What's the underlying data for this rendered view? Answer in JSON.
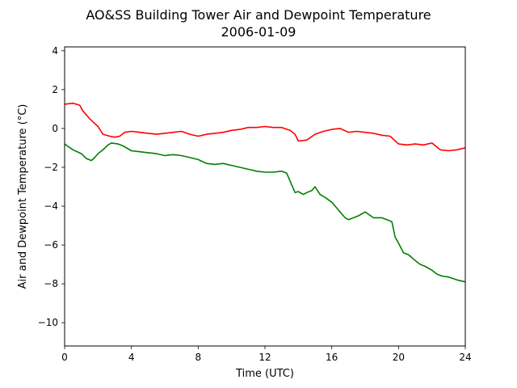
{
  "chart_data": {
    "type": "line",
    "title": "AO&SS Building Tower Air and Dewpoint Temperature",
    "subtitle": "2006-01-09",
    "xlabel": "Time (UTC)",
    "ylabel": "Air and Dewpoint Temperature (°C)",
    "xlim": [
      0,
      24
    ],
    "ylim": [
      -11.2,
      4.2
    ],
    "xticks": [
      0,
      4,
      8,
      12,
      16,
      20,
      24
    ],
    "yticks": [
      -10,
      -8,
      -6,
      -4,
      -2,
      0,
      2,
      4
    ],
    "ytick_labels": [
      "−10",
      "−8",
      "−6",
      "−4",
      "−2",
      "0",
      "2",
      "4"
    ],
    "grid": false,
    "legend": "none",
    "series": [
      {
        "color": "#ff0000",
        "x": [
          0,
          0.5,
          0.9,
          1.1,
          1.5,
          2.0,
          2.3,
          2.7,
          3.0,
          3.3,
          3.6,
          4.0,
          4.5,
          5.0,
          5.5,
          6.0,
          6.5,
          7.0,
          7.5,
          8.0,
          8.5,
          9.0,
          9.5,
          10.0,
          10.5,
          11.0,
          11.5,
          12.0,
          12.5,
          13.0,
          13.5,
          13.8,
          14.0,
          14.5,
          15.0,
          15.5,
          16.0,
          16.5,
          17.0,
          17.5,
          18.0,
          18.5,
          19.0,
          19.5,
          20.0,
          20.5,
          21.0,
          21.5,
          22.0,
          22.5,
          23.0,
          23.5,
          24.0
        ],
        "y": [
          1.25,
          1.3,
          1.2,
          0.9,
          0.5,
          0.1,
          -0.3,
          -0.4,
          -0.45,
          -0.4,
          -0.2,
          -0.15,
          -0.2,
          -0.25,
          -0.3,
          -0.25,
          -0.2,
          -0.15,
          -0.3,
          -0.4,
          -0.3,
          -0.25,
          -0.2,
          -0.1,
          -0.05,
          0.05,
          0.05,
          0.1,
          0.05,
          0.05,
          -0.1,
          -0.3,
          -0.65,
          -0.6,
          -0.3,
          -0.15,
          -0.05,
          0.0,
          -0.2,
          -0.15,
          -0.2,
          -0.25,
          -0.35,
          -0.4,
          -0.8,
          -0.85,
          -0.8,
          -0.85,
          -0.75,
          -1.1,
          -1.15,
          -1.1,
          -1.0
        ]
      },
      {
        "color": "#008000",
        "x": [
          0,
          0.5,
          1.0,
          1.3,
          1.6,
          1.8,
          2.0,
          2.3,
          2.6,
          2.8,
          3.2,
          3.5,
          4.0,
          4.5,
          5.0,
          5.5,
          6.0,
          6.5,
          7.0,
          7.5,
          8.0,
          8.5,
          9.0,
          9.5,
          10.0,
          10.5,
          11.0,
          11.5,
          12.0,
          12.5,
          13.0,
          13.3,
          13.5,
          13.8,
          14.0,
          14.3,
          14.5,
          14.8,
          15.0,
          15.3,
          15.6,
          16.0,
          16.3,
          16.5,
          16.8,
          17.0,
          17.3,
          17.6,
          18.0,
          18.5,
          19.0,
          19.3,
          19.6,
          19.8,
          20.0,
          20.3,
          20.6,
          21.0,
          21.3,
          21.6,
          22.0,
          22.3,
          22.6,
          23.0,
          23.5,
          24.0
        ],
        "y": [
          -0.8,
          -1.1,
          -1.3,
          -1.55,
          -1.65,
          -1.5,
          -1.3,
          -1.1,
          -0.85,
          -0.75,
          -0.8,
          -0.9,
          -1.15,
          -1.2,
          -1.25,
          -1.3,
          -1.4,
          -1.35,
          -1.4,
          -1.5,
          -1.6,
          -1.8,
          -1.85,
          -1.8,
          -1.9,
          -2.0,
          -2.1,
          -2.2,
          -2.25,
          -2.25,
          -2.2,
          -2.3,
          -2.7,
          -3.3,
          -3.25,
          -3.4,
          -3.3,
          -3.2,
          -3.0,
          -3.4,
          -3.55,
          -3.8,
          -4.1,
          -4.3,
          -4.6,
          -4.7,
          -4.6,
          -4.5,
          -4.3,
          -4.6,
          -4.6,
          -4.7,
          -4.8,
          -5.6,
          -5.9,
          -6.4,
          -6.5,
          -6.8,
          -7.0,
          -7.1,
          -7.3,
          -7.5,
          -7.6,
          -7.65,
          -7.8,
          -7.9
        ]
      }
    ]
  }
}
